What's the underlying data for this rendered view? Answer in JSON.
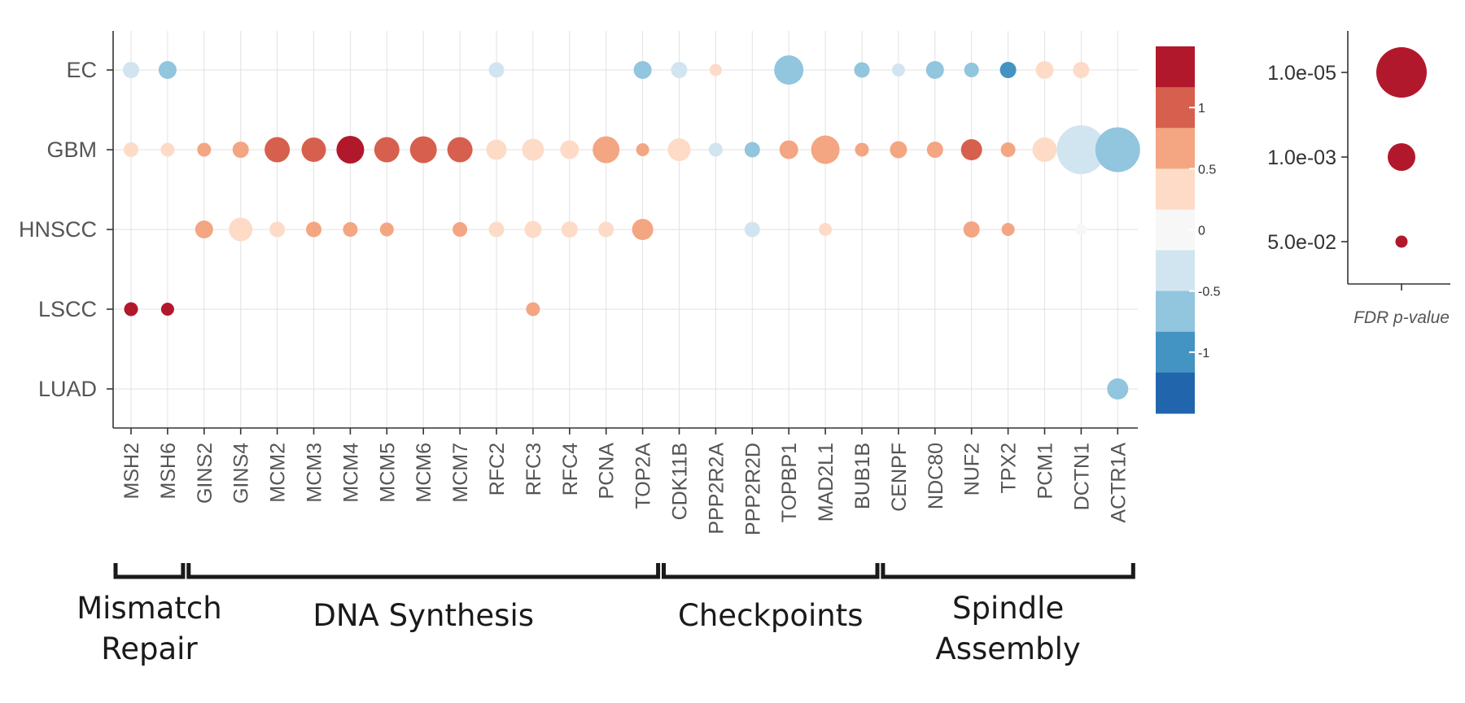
{
  "chart_data": {
    "type": "scatter",
    "subtype": "dot-plot",
    "cohorts": [
      "EC",
      "GBM",
      "HNSCC",
      "LSCC",
      "LUAD"
    ],
    "genes": [
      "MSH2",
      "MSH6",
      "GINS2",
      "GINS4",
      "MCM2",
      "MCM3",
      "MCM4",
      "MCM5",
      "MCM6",
      "MCM7",
      "RFC2",
      "RFC3",
      "RFC4",
      "PCNA",
      "TOP2A",
      "CDK11B",
      "PPP2R2A",
      "PPP2R2D",
      "TOPBP1",
      "MAD2L1",
      "BUB1B",
      "CENPF",
      "NDC80",
      "NUF2",
      "TPX2",
      "PCM1",
      "DCTN1",
      "ACTR1A"
    ],
    "points": [
      {
        "cohort": "EC",
        "gene": "MSH2",
        "value": -0.4,
        "size": 20
      },
      {
        "cohort": "EC",
        "gene": "MSH6",
        "value": -0.7,
        "size": 22
      },
      {
        "cohort": "EC",
        "gene": "RFC2",
        "value": -0.4,
        "size": 19
      },
      {
        "cohort": "EC",
        "gene": "TOP2A",
        "value": -0.7,
        "size": 22
      },
      {
        "cohort": "EC",
        "gene": "CDK11B",
        "value": -0.4,
        "size": 20
      },
      {
        "cohort": "EC",
        "gene": "PPP2R2A",
        "value": 0.3,
        "size": 15
      },
      {
        "cohort": "EC",
        "gene": "TOPBP1",
        "value": -0.7,
        "size": 36
      },
      {
        "cohort": "EC",
        "gene": "BUB1B",
        "value": -0.7,
        "size": 19
      },
      {
        "cohort": "EC",
        "gene": "CENPF",
        "value": -0.4,
        "size": 16
      },
      {
        "cohort": "EC",
        "gene": "NDC80",
        "value": -0.8,
        "size": 22
      },
      {
        "cohort": "EC",
        "gene": "NUF2",
        "value": -0.8,
        "size": 18
      },
      {
        "cohort": "EC",
        "gene": "TPX2",
        "value": -1.1,
        "size": 20
      },
      {
        "cohort": "EC",
        "gene": "PCM1",
        "value": 0.3,
        "size": 22
      },
      {
        "cohort": "EC",
        "gene": "DCTN1",
        "value": 0.3,
        "size": 20
      },
      {
        "cohort": "GBM",
        "gene": "MSH2",
        "value": 0.25,
        "size": 18
      },
      {
        "cohort": "GBM",
        "gene": "MSH6",
        "value": 0.25,
        "size": 17
      },
      {
        "cohort": "GBM",
        "gene": "GINS2",
        "value": 0.6,
        "size": 17
      },
      {
        "cohort": "GBM",
        "gene": "GINS4",
        "value": 0.6,
        "size": 20
      },
      {
        "cohort": "GBM",
        "gene": "MCM2",
        "value": 1.05,
        "size": 31
      },
      {
        "cohort": "GBM",
        "gene": "MCM3",
        "value": 1.05,
        "size": 30
      },
      {
        "cohort": "GBM",
        "gene": "MCM4",
        "value": 1.4,
        "size": 34
      },
      {
        "cohort": "GBM",
        "gene": "MCM5",
        "value": 1.05,
        "size": 31
      },
      {
        "cohort": "GBM",
        "gene": "MCM6",
        "value": 1.05,
        "size": 33
      },
      {
        "cohort": "GBM",
        "gene": "MCM7",
        "value": 1.05,
        "size": 31
      },
      {
        "cohort": "GBM",
        "gene": "RFC2",
        "value": 0.3,
        "size": 25
      },
      {
        "cohort": "GBM",
        "gene": "RFC3",
        "value": 0.3,
        "size": 27
      },
      {
        "cohort": "GBM",
        "gene": "RFC4",
        "value": 0.3,
        "size": 23
      },
      {
        "cohort": "GBM",
        "gene": "PCNA",
        "value": 0.6,
        "size": 33
      },
      {
        "cohort": "GBM",
        "gene": "TOP2A",
        "value": 0.6,
        "size": 16
      },
      {
        "cohort": "GBM",
        "gene": "CDK11B",
        "value": 0.3,
        "size": 28
      },
      {
        "cohort": "GBM",
        "gene": "PPP2R2A",
        "value": -0.4,
        "size": 17
      },
      {
        "cohort": "GBM",
        "gene": "PPP2R2D",
        "value": -0.8,
        "size": 19
      },
      {
        "cohort": "GBM",
        "gene": "TOPBP1",
        "value": 0.6,
        "size": 23
      },
      {
        "cohort": "GBM",
        "gene": "MAD2L1",
        "value": 0.6,
        "size": 35
      },
      {
        "cohort": "GBM",
        "gene": "BUB1B",
        "value": 0.6,
        "size": 17
      },
      {
        "cohort": "GBM",
        "gene": "CENPF",
        "value": 0.6,
        "size": 21
      },
      {
        "cohort": "GBM",
        "gene": "NDC80",
        "value": 0.6,
        "size": 20
      },
      {
        "cohort": "GBM",
        "gene": "NUF2",
        "value": 1.05,
        "size": 26
      },
      {
        "cohort": "GBM",
        "gene": "TPX2",
        "value": 0.6,
        "size": 18
      },
      {
        "cohort": "GBM",
        "gene": "PCM1",
        "value": 0.3,
        "size": 30
      },
      {
        "cohort": "GBM",
        "gene": "DCTN1",
        "value": -0.4,
        "size": 60
      },
      {
        "cohort": "GBM",
        "gene": "ACTR1A",
        "value": -0.7,
        "size": 55
      },
      {
        "cohort": "HNSCC",
        "gene": "GINS2",
        "value": 0.6,
        "size": 22
      },
      {
        "cohort": "HNSCC",
        "gene": "GINS4",
        "value": 0.3,
        "size": 29
      },
      {
        "cohort": "HNSCC",
        "gene": "MCM2",
        "value": 0.3,
        "size": 19
      },
      {
        "cohort": "HNSCC",
        "gene": "MCM3",
        "value": 0.6,
        "size": 19
      },
      {
        "cohort": "HNSCC",
        "gene": "MCM4",
        "value": 0.6,
        "size": 18
      },
      {
        "cohort": "HNSCC",
        "gene": "MCM5",
        "value": 0.6,
        "size": 17
      },
      {
        "cohort": "HNSCC",
        "gene": "MCM7",
        "value": 0.6,
        "size": 18
      },
      {
        "cohort": "HNSCC",
        "gene": "RFC2",
        "value": 0.3,
        "size": 19
      },
      {
        "cohort": "HNSCC",
        "gene": "RFC3",
        "value": 0.3,
        "size": 21
      },
      {
        "cohort": "HNSCC",
        "gene": "RFC4",
        "value": 0.3,
        "size": 20
      },
      {
        "cohort": "HNSCC",
        "gene": "PCNA",
        "value": 0.3,
        "size": 19
      },
      {
        "cohort": "HNSCC",
        "gene": "TOP2A",
        "value": 0.6,
        "size": 26
      },
      {
        "cohort": "HNSCC",
        "gene": "PPP2R2D",
        "value": -0.4,
        "size": 19
      },
      {
        "cohort": "HNSCC",
        "gene": "MAD2L1",
        "value": 0.3,
        "size": 16
      },
      {
        "cohort": "HNSCC",
        "gene": "NUF2",
        "value": 0.6,
        "size": 20
      },
      {
        "cohort": "HNSCC",
        "gene": "TPX2",
        "value": 0.6,
        "size": 16
      },
      {
        "cohort": "HNSCC",
        "gene": "DCTN1",
        "value": 0.02,
        "size": 14
      },
      {
        "cohort": "LSCC",
        "gene": "MSH2",
        "value": 1.4,
        "size": 17
      },
      {
        "cohort": "LSCC",
        "gene": "MSH6",
        "value": 1.4,
        "size": 16
      },
      {
        "cohort": "LSCC",
        "gene": "RFC3",
        "value": 0.6,
        "size": 17
      },
      {
        "cohort": "LUAD",
        "gene": "ACTR1A",
        "value": -0.7,
        "size": 26
      }
    ],
    "color_scale": {
      "ticks": [
        "1",
        "0.5",
        "0",
        "-0.5",
        "-1"
      ],
      "tick_values": [
        1,
        0.5,
        0,
        -0.5,
        -1
      ],
      "bins": [
        "#b2182b",
        "#d6604d",
        "#f4a582",
        "#fddbc7",
        "#f7f7f7",
        "#d1e5f0",
        "#92c5de",
        "#4393c3",
        "#2166ac"
      ],
      "range": [
        -1.5,
        1.5
      ]
    },
    "size_legend": {
      "title": "FDR p-value",
      "entries": [
        {
          "label": "1.0e-05",
          "size": 62
        },
        {
          "label": "1.0e-03",
          "size": 34
        },
        {
          "label": "5.0e-02",
          "size": 15
        }
      ],
      "color": "#b2182b"
    },
    "groups": [
      {
        "label": [
          "Mismatch",
          "Repair"
        ],
        "start": "MSH2",
        "end": "MSH6"
      },
      {
        "label": [
          "DNA Synthesis"
        ],
        "start": "GINS2",
        "end": "TOP2A"
      },
      {
        "label": [
          "Checkpoints"
        ],
        "start": "CDK11B",
        "end": "BUB1B"
      },
      {
        "label": [
          "Spindle",
          "Assembly"
        ],
        "start": "CENPF",
        "end": "ACTR1A"
      }
    ],
    "grid": true
  }
}
